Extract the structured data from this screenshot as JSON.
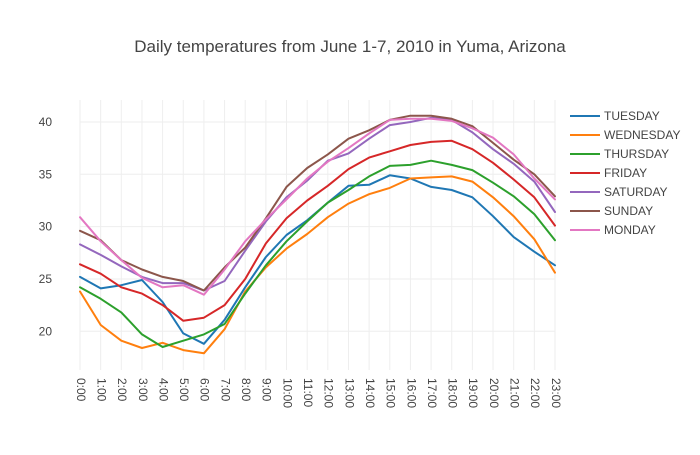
{
  "chart_data": {
    "type": "line",
    "title": "Daily temperatures from June 1-7, 2010 in Yuma, Arizona",
    "xlabel": "",
    "ylabel": "",
    "categories": [
      "0:00",
      "1:00",
      "2:00",
      "3:00",
      "4:00",
      "5:00",
      "6:00",
      "7:00",
      "8:00",
      "9:00",
      "10:00",
      "11:00",
      "12:00",
      "13:00",
      "14:00",
      "15:00",
      "16:00",
      "17:00",
      "18:00",
      "19:00",
      "20:00",
      "21:00",
      "22:00",
      "23:00"
    ],
    "y_ticks": [
      20,
      25,
      30,
      35,
      40
    ],
    "ylim": [
      16.3,
      42.1
    ],
    "grid": true,
    "legend_position": "right",
    "colors": [
      "#1f77b4",
      "#ff7f0e",
      "#2ca02c",
      "#d62728",
      "#9467bd",
      "#8c564b",
      "#e377c2"
    ],
    "series": [
      {
        "name": "TUESDAY",
        "values": [
          25.2,
          24.1,
          24.4,
          24.9,
          22.8,
          19.8,
          18.8,
          21.1,
          24.2,
          27.1,
          29.2,
          30.6,
          32.3,
          33.9,
          34.0,
          34.9,
          34.6,
          33.8,
          33.5,
          32.8,
          31.0,
          29.0,
          27.6,
          26.3
        ]
      },
      {
        "name": "WEDNESDAY",
        "values": [
          23.8,
          20.6,
          19.1,
          18.4,
          18.9,
          18.2,
          17.9,
          20.2,
          23.8,
          26.1,
          27.9,
          29.3,
          30.9,
          32.2,
          33.1,
          33.7,
          34.6,
          34.7,
          34.8,
          34.3,
          32.8,
          31.0,
          28.8,
          25.6
        ]
      },
      {
        "name": "THURSDAY",
        "values": [
          24.2,
          23.1,
          21.8,
          19.7,
          18.5,
          19.1,
          19.7,
          20.7,
          23.6,
          26.3,
          28.6,
          30.5,
          32.3,
          33.5,
          34.8,
          35.8,
          35.9,
          36.3,
          35.9,
          35.4,
          34.2,
          32.9,
          31.2,
          28.7
        ]
      },
      {
        "name": "FRIDAY",
        "values": [
          26.4,
          25.5,
          24.2,
          23.6,
          22.5,
          21.0,
          21.3,
          22.5,
          25.0,
          28.4,
          30.8,
          32.5,
          33.9,
          35.5,
          36.6,
          37.2,
          37.8,
          38.1,
          38.2,
          37.4,
          36.1,
          34.5,
          32.8,
          30.1
        ]
      },
      {
        "name": "SATURDAY",
        "values": [
          28.3,
          27.3,
          26.2,
          25.2,
          24.6,
          24.6,
          23.9,
          24.8,
          27.7,
          30.5,
          32.8,
          34.4,
          36.3,
          37.0,
          38.4,
          39.7,
          40.0,
          40.4,
          40.2,
          39.0,
          37.4,
          36.0,
          34.3,
          31.4
        ]
      },
      {
        "name": "SUNDAY",
        "values": [
          29.6,
          28.7,
          26.8,
          25.9,
          25.2,
          24.8,
          23.9,
          26.1,
          28.0,
          30.8,
          33.8,
          35.6,
          36.9,
          38.4,
          39.2,
          40.2,
          40.6,
          40.6,
          40.3,
          39.6,
          38.0,
          36.4,
          35.0,
          32.9
        ]
      },
      {
        "name": "MONDAY",
        "values": [
          30.9,
          28.6,
          26.8,
          25.1,
          24.2,
          24.4,
          23.5,
          25.9,
          28.6,
          30.7,
          32.6,
          34.6,
          36.2,
          37.5,
          38.9,
          40.2,
          40.3,
          40.3,
          40.1,
          39.4,
          38.5,
          36.9,
          34.6,
          32.6
        ]
      }
    ]
  }
}
